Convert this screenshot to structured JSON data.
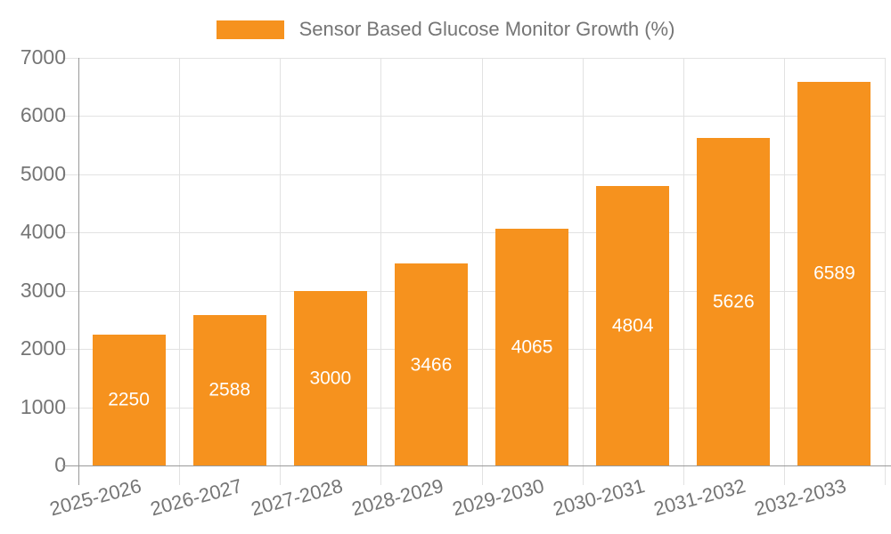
{
  "chart_data": {
    "type": "bar",
    "title": "Sensor Based Glucose Monitor Growth (%)",
    "legend": {
      "label": "Sensor Based Glucose Monitor Growth (%)",
      "position": "top-center"
    },
    "categories": [
      "2025-2026",
      "2026-2027",
      "2027-2028",
      "2028-2029",
      "2029-2030",
      "2030-2031",
      "2031-2032",
      "2032-2033"
    ],
    "series": [
      {
        "name": "Sensor Based Glucose Monitor Growth (%)",
        "values": [
          2250,
          2588,
          3000,
          3466,
          4065,
          4804,
          5626,
          6589
        ]
      }
    ],
    "value_labels": [
      "2250",
      "2588",
      "3000",
      "3466",
      "4065",
      "4804",
      "5626",
      "6589"
    ],
    "ylim": [
      0,
      7000
    ],
    "yticks": [
      0,
      1000,
      2000,
      3000,
      4000,
      5000,
      6000,
      7000
    ],
    "grid": "horizontal-and-vertical",
    "colors": {
      "bar": "#F6921E",
      "value_label": "#FFFFFF",
      "axis_text": "#757575",
      "gridline": "#E2E2E2",
      "axis_line": "#999999"
    }
  }
}
